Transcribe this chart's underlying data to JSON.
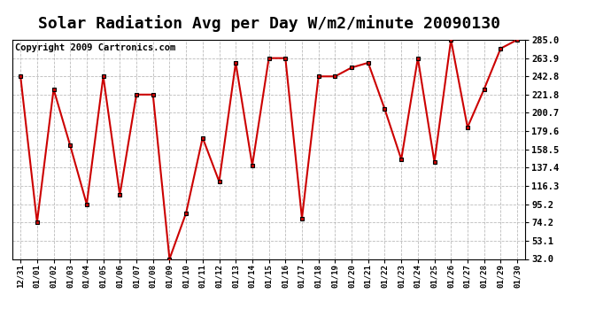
{
  "title": "Solar Radiation Avg per Day W/m2/minute 20090130",
  "copyright_text": "Copyright 2009 Cartronics.com",
  "labels": [
    "12/31",
    "01/01",
    "01/02",
    "01/03",
    "01/04",
    "01/05",
    "01/06",
    "01/07",
    "01/08",
    "01/09",
    "01/10",
    "01/11",
    "01/12",
    "01/13",
    "01/14",
    "01/15",
    "01/16",
    "01/17",
    "01/18",
    "01/19",
    "01/20",
    "01/21",
    "01/22",
    "01/23",
    "01/24",
    "01/25",
    "01/26",
    "01/27",
    "01/28",
    "01/29",
    "01/30"
  ],
  "values": [
    242.8,
    74.2,
    228.0,
    163.0,
    95.2,
    242.8,
    106.0,
    221.8,
    221.8,
    32.0,
    85.0,
    172.0,
    121.3,
    258.5,
    140.0,
    263.9,
    263.9,
    79.0,
    242.8,
    242.8,
    253.0,
    258.5,
    205.0,
    147.0,
    263.9,
    144.0,
    285.0,
    184.0,
    228.0,
    275.0,
    285.0
  ],
  "yticks": [
    32.0,
    53.1,
    74.2,
    95.2,
    116.3,
    137.4,
    158.5,
    179.6,
    200.7,
    221.8,
    242.8,
    263.9,
    285.0
  ],
  "ymin": 32.0,
  "ymax": 285.0,
  "line_color": "#cc0000",
  "marker_color": "#000000",
  "background_color": "#ffffff",
  "plot_bg_color": "#ffffff",
  "grid_color": "#aaaaaa",
  "title_fontsize": 13,
  "copyright_fontsize": 7.5
}
